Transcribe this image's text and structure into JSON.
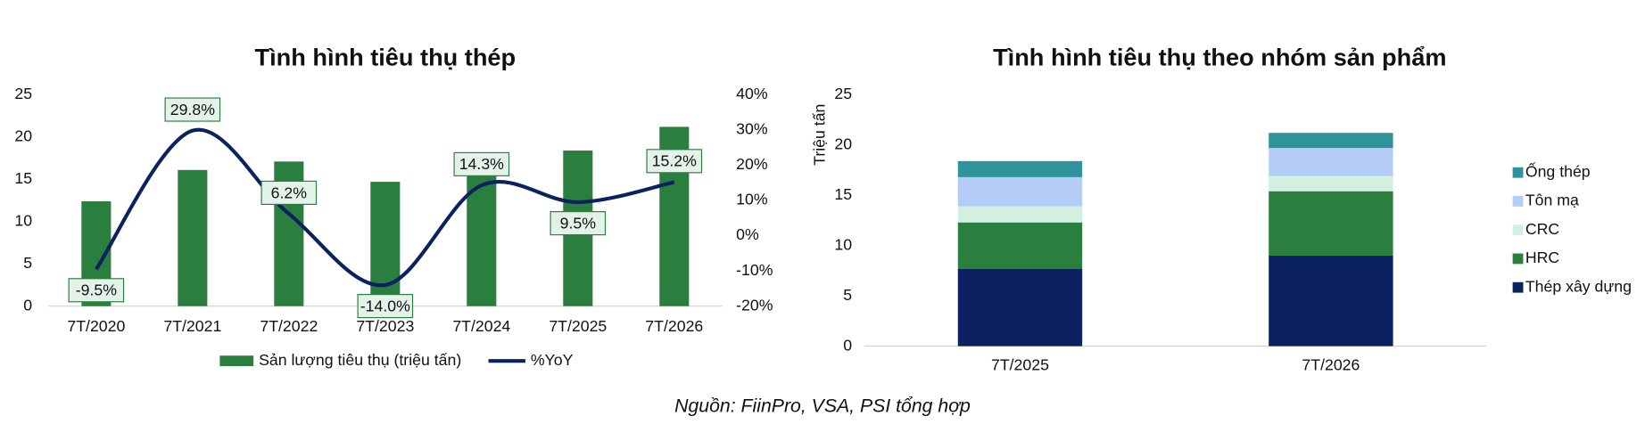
{
  "chart_data": [
    {
      "type": "bar_line",
      "title": "Tình hình tiêu thụ thép",
      "categories": [
        "7T/2020",
        "7T/2021",
        "7T/2022",
        "7T/2023",
        "7T/2024",
        "7T/2025",
        "7T/2026"
      ],
      "series": [
        {
          "name": "Sản lượng tiêu thụ (triệu tấn)",
          "color": "#2a7f3e",
          "values": [
            12.4,
            16.1,
            17.1,
            14.7,
            16.8,
            18.4,
            21.2
          ]
        },
        {
          "name": "%YoY",
          "color": "#0b2160",
          "axis": "y2",
          "values": [
            -9.5,
            29.8,
            6.2,
            -14.0,
            14.3,
            9.5,
            15.2
          ],
          "value_labels": [
            "-9.5%",
            "29.8%",
            "6.2%",
            "-14.0%",
            "14.3%",
            "9.5%",
            "15.2%"
          ]
        }
      ],
      "ylim": [
        0,
        25
      ],
      "yticks": [
        0,
        5,
        10,
        15,
        20,
        25
      ],
      "y2lim": [
        -20,
        40
      ],
      "y2ticks": [
        {
          "value": -20,
          "label": "-20%"
        },
        {
          "value": -10,
          "label": "-10%"
        },
        {
          "value": 0,
          "label": "0%"
        },
        {
          "value": 10,
          "label": "10%"
        },
        {
          "value": 20,
          "label": "20%"
        },
        {
          "value": 30,
          "label": "30%"
        },
        {
          "value": 40,
          "label": "40%"
        }
      ],
      "legend": "bottom"
    },
    {
      "type": "stacked_bar",
      "title": "Tình hình tiêu thụ theo nhóm sản phẩm",
      "ylabel": "Triệu tấn",
      "categories": [
        "7T/2025",
        "7T/2026"
      ],
      "series": [
        {
          "name": "Thép xây dựng",
          "color": "#0b2160",
          "values": [
            7.7,
            9.0
          ]
        },
        {
          "name": "HRC",
          "color": "#2a7f3e",
          "values": [
            4.6,
            6.4
          ]
        },
        {
          "name": "CRC",
          "color": "#d3efdf",
          "values": [
            1.6,
            1.5
          ]
        },
        {
          "name": "Tôn mạ",
          "color": "#b4cdf7",
          "values": [
            2.9,
            2.8
          ]
        },
        {
          "name": "Ống thép",
          "color": "#2e939a",
          "values": [
            1.6,
            1.5
          ]
        }
      ],
      "ylim": [
        0,
        25
      ],
      "yticks": [
        0,
        5,
        10,
        15,
        20,
        25
      ],
      "legend": "right"
    }
  ],
  "footer": "Nguồn: FiinPro, VSA, PSI tổng hợp"
}
